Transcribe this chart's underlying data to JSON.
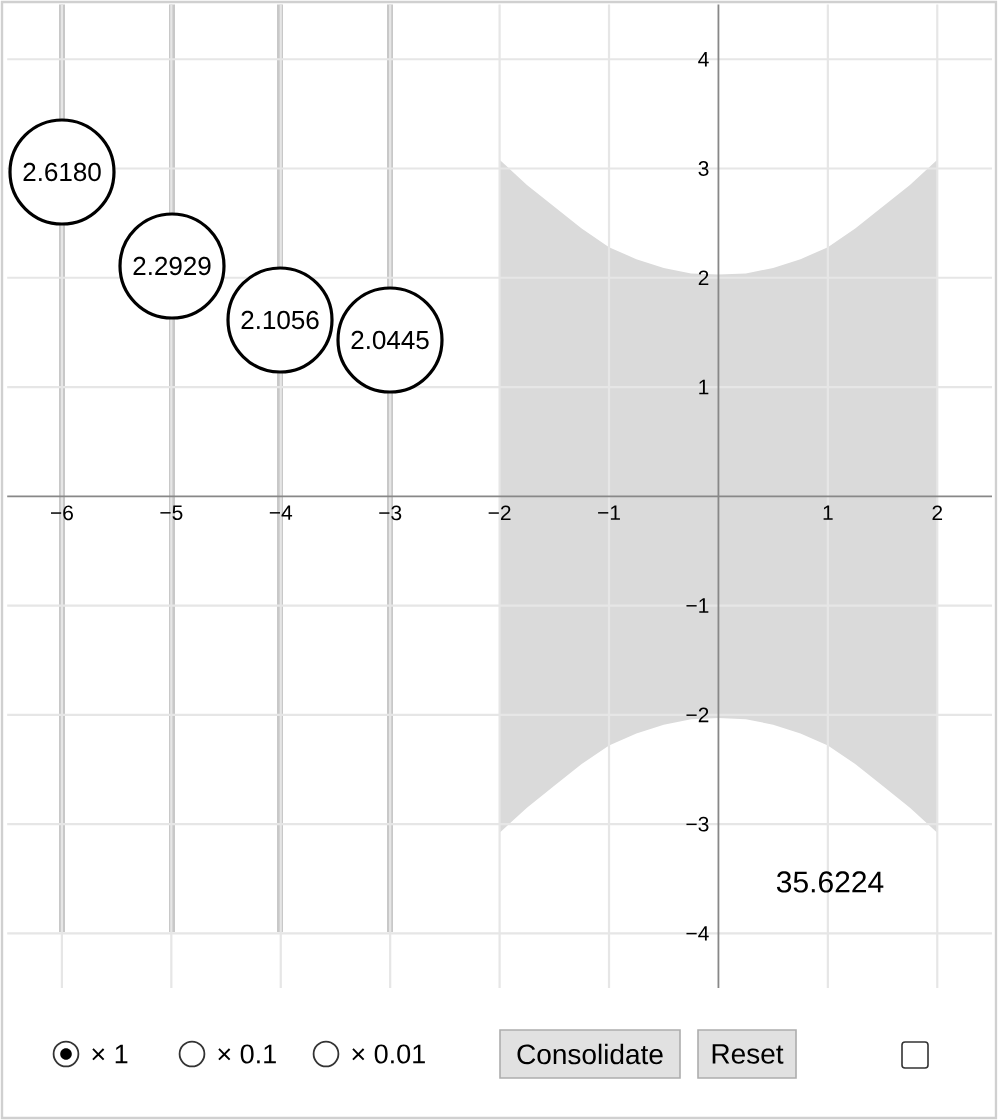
{
  "chart_data": {
    "type": "area",
    "x": [
      -2,
      -1.75,
      -1.5,
      -1.25,
      -1,
      -0.75,
      -0.5,
      -0.25,
      0,
      0.25,
      0.5,
      0.75,
      1,
      1.25,
      1.5,
      1.75,
      2
    ],
    "series": [
      {
        "color": "#dadada",
        "values": [
          3.08,
          2.85,
          2.65,
          2.45,
          2.28,
          2.17,
          2.09,
          2.04,
          2.03,
          2.04,
          2.09,
          2.17,
          2.28,
          2.45,
          2.65,
          2.85,
          3.08
        ]
      },
      {
        "color": "#dadada",
        "values": [
          -3.08,
          -2.85,
          -2.65,
          -2.45,
          -2.28,
          -2.17,
          -2.09,
          -2.04,
          -2.03,
          -2.04,
          -2.09,
          -2.17,
          -2.28,
          -2.45,
          -2.65,
          -2.85,
          -3.08
        ]
      }
    ],
    "xlim": [
      -6.5,
      2.5
    ],
    "ylim": [
      -4.5,
      4.5
    ],
    "xticks": [
      {
        "value": -6,
        "label": "−6"
      },
      {
        "value": -5,
        "label": "−5"
      },
      {
        "value": -4,
        "label": "−4"
      },
      {
        "value": -3,
        "label": "−3"
      },
      {
        "value": -2,
        "label": "−2"
      },
      {
        "value": -1,
        "label": "−1"
      },
      1,
      2
    ],
    "yticks": [
      {
        "value": -4,
        "label": "−4"
      },
      {
        "value": -3,
        "label": "−3"
      },
      {
        "value": -2,
        "label": "−2"
      },
      {
        "value": -1,
        "label": "−1"
      },
      1,
      2,
      3,
      4
    ],
    "grid": true,
    "annotations": [
      "2.6180",
      "2.2929",
      "2.1056",
      "2.0445",
      "35.6224",
      "× 1",
      "× 0.1",
      "× 0.01",
      "Consolidate",
      "Reset"
    ]
  }
}
